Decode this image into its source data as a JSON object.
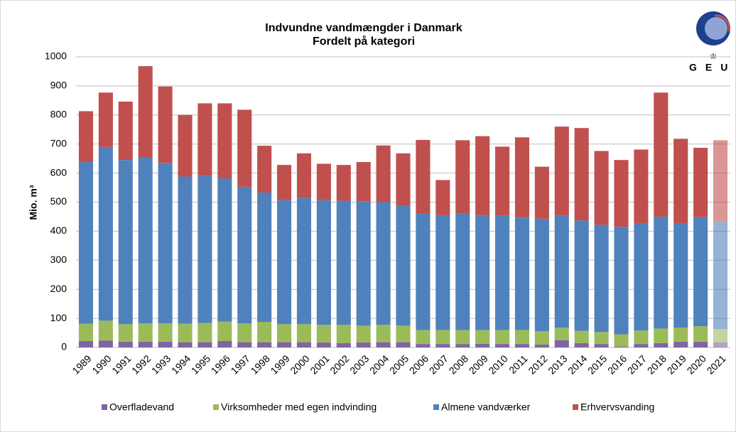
{
  "chart_data": {
    "type": "stacked_bar",
    "title": "Indvundne vandmængder i Danmark",
    "subtitle": "Fordelt på kategori",
    "y_label": "Mio. m³",
    "logo": "GEUS",
    "categories": [
      "1989",
      "1990",
      "1991",
      "1992",
      "1993",
      "1994",
      "1995",
      "1996",
      "1997",
      "1998",
      "1999",
      "2000",
      "2001",
      "2002",
      "2003",
      "2004",
      "2005",
      "2006",
      "2007",
      "2008",
      "2009",
      "2010",
      "2011",
      "2012",
      "2013",
      "2014",
      "2015",
      "2016",
      "2017",
      "2018",
      "2019",
      "2020",
      "2021"
    ],
    "series": [
      {
        "name": "Overfladevand",
        "color": "#8064a2",
        "values": [
          22,
          24,
          20,
          20,
          20,
          18,
          18,
          22,
          18,
          18,
          18,
          18,
          17,
          15,
          17,
          18,
          18,
          12,
          12,
          12,
          13,
          12,
          12,
          10,
          25,
          15,
          12,
          3,
          12,
          15,
          20,
          20,
          18
        ]
      },
      {
        "name": "Virksomheder med egen indvinding",
        "color": "#9bbb59",
        "values": [
          60,
          68,
          60,
          63,
          63,
          64,
          66,
          67,
          65,
          70,
          62,
          62,
          61,
          63,
          58,
          60,
          57,
          48,
          48,
          48,
          47,
          48,
          48,
          46,
          43,
          42,
          41,
          42,
          46,
          50,
          48,
          53,
          45
        ]
      },
      {
        "name": "Almene vandværker",
        "color": "#4f81bd",
        "values": [
          556,
          598,
          565,
          570,
          552,
          506,
          506,
          493,
          470,
          445,
          427,
          435,
          429,
          427,
          427,
          422,
          413,
          402,
          395,
          400,
          393,
          393,
          387,
          387,
          385,
          380,
          369,
          370,
          370,
          385,
          360,
          375,
          369
        ]
      },
      {
        "name": "Erhvervsvanding",
        "color": "#c0504d",
        "values": [
          175,
          187,
          201,
          315,
          263,
          212,
          250,
          258,
          265,
          161,
          121,
          153,
          125,
          123,
          136,
          195,
          180,
          252,
          121,
          253,
          274,
          238,
          276,
          179,
          307,
          318,
          254,
          230,
          253,
          427,
          290,
          239,
          281
        ]
      }
    ],
    "ylim": [
      0,
      1000
    ],
    "yticks": [
      0,
      100,
      200,
      300,
      400,
      500,
      600,
      700,
      800,
      900,
      1000
    ],
    "grid": true
  }
}
